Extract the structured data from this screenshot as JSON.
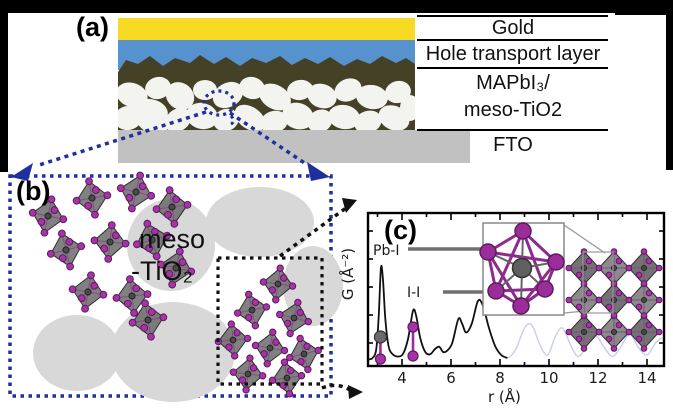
{
  "figure": {
    "panel_a": {
      "label": "(a)",
      "layer_labels": [
        "Gold",
        "Hole transport layer",
        "MAPbI₃/",
        "meso-TiO2",
        "FTO"
      ],
      "layers": [
        {
          "name": "gold-electrode",
          "color": "#F6DA23"
        },
        {
          "name": "hole-transport-layer",
          "color": "#5693CE"
        },
        {
          "name": "perovskite-meso-tio2-layer",
          "color": "#454127"
        },
        {
          "name": "fto-substrate",
          "color": "#C1C1C1"
        }
      ]
    },
    "panel_b": {
      "label": "(b)",
      "text_line1": "meso",
      "text_line2": "-TiO₂"
    },
    "panel_c": {
      "label": "(c)",
      "xlabel": "r (Å)",
      "ylabel": "G (Å⁻²)",
      "annotation_pb_i": "Pb-I",
      "annotation_i_i": "I-I"
    },
    "colors": {
      "tio2_particle": "#D8D8D8",
      "blob_white": "#F3F3EF",
      "iodine_purple": "#A832A8",
      "iodine_dark": "#5E1B5E",
      "lead_gray": "#5F5F5F",
      "octahedron_fill": "#6B6B6B",
      "octahedron_edge": "#2F2F2F",
      "callout_blue": "#1F2F9C",
      "arrow_gray": "#707070",
      "curve_black": "#111111",
      "curve_faint": "#C9CDF2"
    }
  },
  "chart_data": {
    "type": "line",
    "title": "",
    "xlabel": "r (Å)",
    "ylabel": "G (Å⁻²)",
    "xlim": [
      2.6,
      14.7
    ],
    "xticks": [
      4,
      6,
      8,
      10,
      12,
      14
    ],
    "grid": false,
    "note": "y values normalized 0-1 of plot height; no y tick labels shown",
    "series": [
      {
        "name": "measured PDF G(r)",
        "color": "#111111",
        "points": [
          [
            2.62,
            0.01
          ],
          [
            2.8,
            0.02
          ],
          [
            2.95,
            0.08
          ],
          [
            3.05,
            0.3
          ],
          [
            3.14,
            0.62
          ],
          [
            3.22,
            0.55
          ],
          [
            3.32,
            0.28
          ],
          [
            3.45,
            0.1
          ],
          [
            3.62,
            0.045
          ],
          [
            3.85,
            0.03
          ],
          [
            4.05,
            0.05
          ],
          [
            4.25,
            0.15
          ],
          [
            4.45,
            0.335
          ],
          [
            4.58,
            0.3
          ],
          [
            4.75,
            0.15
          ],
          [
            4.95,
            0.06
          ],
          [
            5.15,
            0.045
          ],
          [
            5.35,
            0.08
          ],
          [
            5.52,
            0.095
          ],
          [
            5.68,
            0.06
          ],
          [
            5.85,
            0.07
          ],
          [
            6.05,
            0.12
          ],
          [
            6.3,
            0.28
          ],
          [
            6.45,
            0.25
          ],
          [
            6.62,
            0.19
          ],
          [
            6.85,
            0.25
          ],
          [
            7.1,
            0.4
          ],
          [
            7.3,
            0.37
          ],
          [
            7.55,
            0.22
          ],
          [
            7.8,
            0.1
          ],
          [
            8.05,
            0.04
          ],
          [
            8.3,
            0.02
          ]
        ]
      },
      {
        "name": "extended PDF (faint)",
        "color": "#C9CDF2",
        "points": [
          [
            8.0,
            0.05
          ],
          [
            8.3,
            0.02
          ],
          [
            8.65,
            0.08
          ],
          [
            9.0,
            0.22
          ],
          [
            9.3,
            0.24
          ],
          [
            9.65,
            0.1
          ],
          [
            9.95,
            0.04
          ],
          [
            10.25,
            0.16
          ],
          [
            10.55,
            0.22
          ],
          [
            10.9,
            0.1
          ],
          [
            11.2,
            0.03
          ],
          [
            11.55,
            0.1
          ],
          [
            11.9,
            0.17
          ],
          [
            12.25,
            0.09
          ],
          [
            12.6,
            0.03
          ],
          [
            12.95,
            0.1
          ],
          [
            13.3,
            0.18
          ],
          [
            13.65,
            0.09
          ],
          [
            14.0,
            0.04
          ],
          [
            14.35,
            0.12
          ],
          [
            14.65,
            0.16
          ]
        ]
      }
    ],
    "annotations": [
      {
        "label": "Pb-I",
        "r": 3.12,
        "marker": "gray sphere over purple sphere"
      },
      {
        "label": "I-I",
        "r": 4.45,
        "marker": "two purple spheres"
      }
    ]
  }
}
